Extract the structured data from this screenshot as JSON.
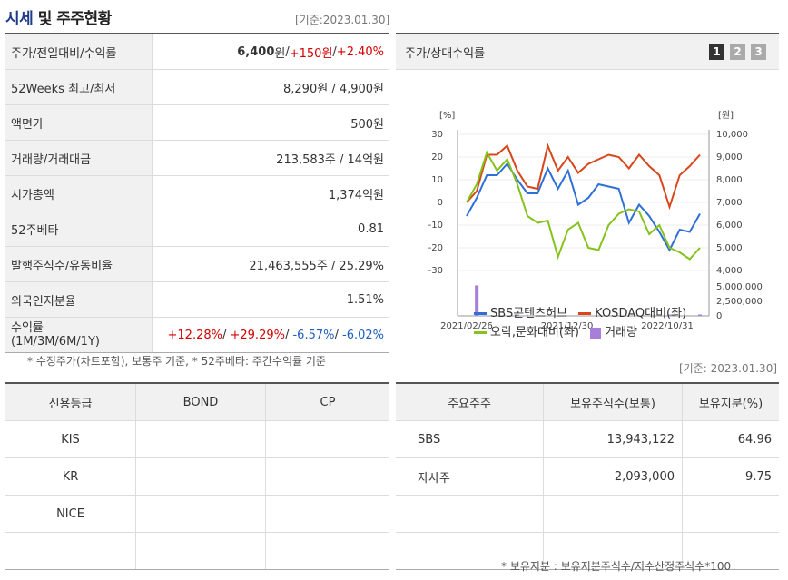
{
  "header": {
    "title_part1": "시세",
    "title_part2": "및 주주현황",
    "as_of": "[기준:2023.01.30]"
  },
  "info_rows": [
    {
      "label": "주가/전일대비/수익률"
    },
    {
      "label": "52Weeks 최고/최저",
      "value": "8,290원 / 4,900원"
    },
    {
      "label": "액면가",
      "value": "500원"
    },
    {
      "label": "거래량/거래대금",
      "value": "213,583주 / 14억원"
    },
    {
      "label": "시가총액",
      "value": "1,374억원"
    },
    {
      "label": "52주베타",
      "value": "0.81"
    },
    {
      "label": "발행주식수/유동비율",
      "value": "21,463,555주 / 25.29%"
    },
    {
      "label": "외국인지분율",
      "value": "1.51%"
    }
  ],
  "price_row": {
    "price": "6,400",
    "price_unit": "원",
    "sep": " / ",
    "change": "+150원",
    "rate": "+2.40%"
  },
  "returns_row": {
    "label_line1": "수익률",
    "label_line2": "(1M/3M/6M/1Y)",
    "r1m": "+12.28%",
    "r3m": "+29.29%",
    "r6m": "-6.57%",
    "r1y": "-6.02%"
  },
  "footnote": "* 수정주가(차트포함), 보통주 기준, * 52주베타: 주간수익률 기준",
  "chart_panel": {
    "title": "주가/상대수익률",
    "buttons": [
      "1",
      "2",
      "3"
    ]
  },
  "chart_data": {
    "type": "line",
    "x_ticks": [
      "2021/02/26",
      "2021/12/30",
      "2022/10/31"
    ],
    "left_unit": "[%]",
    "right_unit": "[원]",
    "left_ticks": [
      "30",
      "20",
      "10",
      "0",
      "-10",
      "-20",
      "-30"
    ],
    "right_ticks": [
      "10,000",
      "9,000",
      "8,000",
      "7,000",
      "6,000",
      "5,000",
      "4,000"
    ],
    "volume_ticks": [
      "5,000,000",
      "2,500,000",
      "0"
    ],
    "ylim": [
      -30,
      30
    ],
    "series": [
      {
        "name": "SBS콘텐츠허브",
        "color": "#2e6fd8",
        "values": [
          -6,
          2,
          12,
          12,
          17,
          10,
          4,
          4,
          15,
          6,
          14,
          -1,
          2,
          8,
          7,
          6,
          -9,
          -1,
          -6,
          -13,
          -21,
          -12,
          -13,
          -5
        ]
      },
      {
        "name": "KOSDAQ대비(좌)",
        "color": "#d8461b",
        "values": [
          0,
          5,
          21,
          21,
          25,
          14,
          7,
          6,
          25,
          14,
          20,
          13,
          17,
          19,
          21,
          20,
          15,
          21,
          16,
          12,
          -2,
          12,
          16,
          21
        ]
      },
      {
        "name": "오락,문화대비(좌)",
        "color": "#86c21c",
        "values": [
          0,
          8,
          22,
          14,
          19,
          8,
          -6,
          -9,
          -8,
          -24,
          -12,
          -9,
          -20,
          -21,
          -10,
          -5,
          -3,
          -4,
          -14,
          -10,
          -20,
          -22,
          -25,
          -20
        ]
      }
    ],
    "volume": {
      "name": "거래량",
      "color": "#a77ed8",
      "ylim": [
        0,
        5000000
      ],
      "values": [
        0,
        6000000,
        0,
        0,
        0,
        100000,
        0,
        0,
        0,
        0,
        0,
        0,
        0,
        0,
        0,
        0,
        0,
        0,
        0,
        0,
        100000,
        0,
        0,
        100000
      ]
    }
  },
  "legend": [
    {
      "label": "SBS콘텐츠허브",
      "color": "#2e6fd8",
      "kind": "line"
    },
    {
      "label": "KOSDAQ대비(좌)",
      "color": "#d8461b",
      "kind": "line"
    },
    {
      "label": "오락,문화대비(좌)",
      "color": "#86c21c",
      "kind": "line"
    },
    {
      "label": "거래량",
      "color": "#a77ed8",
      "kind": "box"
    }
  ],
  "credit": {
    "headers": [
      "신용등급",
      "BOND",
      "CP"
    ],
    "rows": [
      [
        "KIS",
        "",
        ""
      ],
      [
        "KR",
        "",
        ""
      ],
      [
        "NICE",
        "",
        ""
      ],
      [
        "",
        "",
        ""
      ]
    ]
  },
  "holders": {
    "as_of": "[기준: 2023.01.30]",
    "headers": [
      "주요주주",
      "보유주식수(보통)",
      "보유지분(%)"
    ],
    "rows": [
      [
        "SBS",
        "13,943,122",
        "64.96"
      ],
      [
        "자사주",
        "2,093,000",
        "9.75"
      ],
      [
        "",
        "",
        ""
      ],
      [
        "",
        "",
        ""
      ]
    ],
    "note": "* 보유지분 : 보유지분주식수/지수산정주식수*100"
  }
}
